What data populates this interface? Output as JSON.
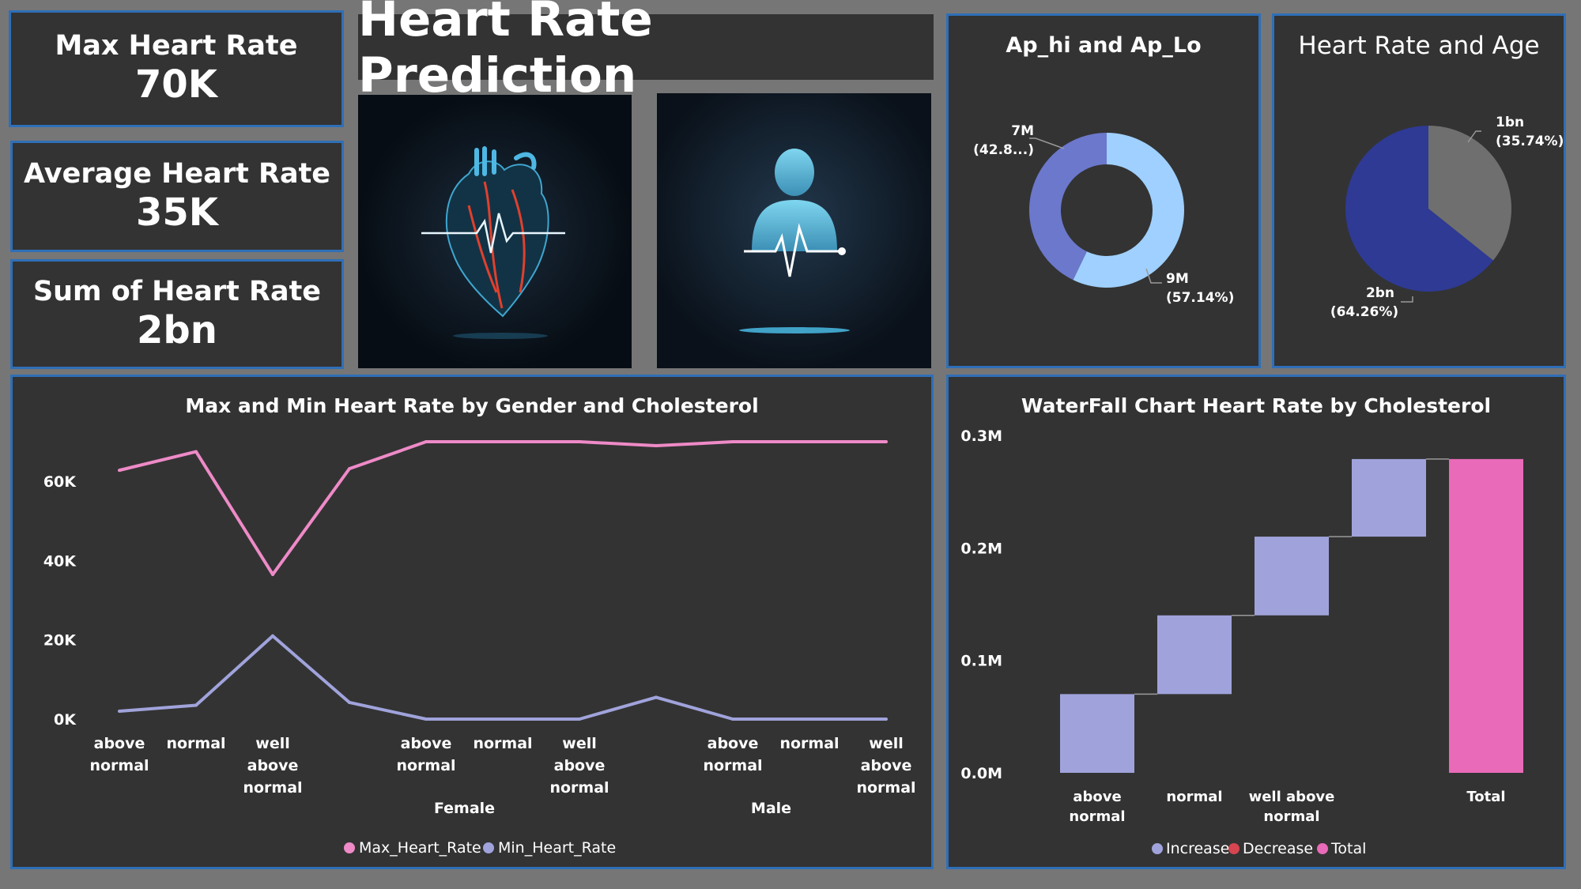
{
  "kpis": [
    {
      "label": "Max Heart Rate",
      "value": "70K"
    },
    {
      "label": "Average Heart Rate",
      "value": "35K"
    },
    {
      "label": "Sum of Heart Rate",
      "value": "2bn"
    }
  ],
  "dashboard_title": "Heart Rate Prediction",
  "images": {
    "heart": "heart-illustration-icon",
    "person": "person-pulse-icon"
  },
  "colors": {
    "max": "#ee8ac7",
    "min": "#a0a3db",
    "increase": "#a0a3db",
    "decrease": "#d64550",
    "total": "#e86ab8",
    "donut_light": "#9fd0ff",
    "donut_dark": "#6b78cc",
    "pie_gray": "#6f6f6f",
    "pie_navy": "#2e3a94"
  },
  "chart_data": [
    {
      "type": "donut",
      "title": "Ap_hi and Ap_Lo",
      "slices": [
        {
          "value_label": "9M",
          "pct_label": "(57.14%)",
          "value": 9,
          "pct": 57.14
        },
        {
          "value_label": "7M",
          "pct_label": "(42.8...)",
          "value": 7,
          "pct": 42.86
        }
      ]
    },
    {
      "type": "pie",
      "title": "Heart Rate and Age",
      "slices": [
        {
          "value_label": "1bn",
          "pct_label": "(35.74%)",
          "value": 1,
          "pct": 35.74
        },
        {
          "value_label": "2bn",
          "pct_label": "(64.26%)",
          "value": 2,
          "pct": 64.26
        }
      ]
    },
    {
      "type": "line",
      "title": "Max and Min Heart Rate by Gender and Cholesterol",
      "categories": [
        [
          "above",
          "normal"
        ],
        [
          "normal"
        ],
        [
          "well",
          "above",
          "normal"
        ],
        [],
        [
          "above",
          "normal"
        ],
        [
          "normal"
        ],
        [
          "well",
          "above",
          "normal"
        ],
        [],
        [
          "above",
          "normal"
        ],
        [
          "normal"
        ],
        [
          "well",
          "above",
          "normal"
        ]
      ],
      "groups": [
        {
          "label": "Female",
          "index": 4.5
        },
        {
          "label": "Male",
          "index": 8.5
        }
      ],
      "yticks": [
        {
          "label": "0K",
          "v": 0
        },
        {
          "label": "20K",
          "v": 20000
        },
        {
          "label": "40K",
          "v": 40000
        },
        {
          "label": "60K",
          "v": 60000
        }
      ],
      "ylim": [
        0,
        72000
      ],
      "series": [
        {
          "name": "Max_Heart_Rate",
          "values": [
            62800,
            67500,
            36500,
            63200,
            70000,
            70000,
            70000,
            69000,
            70000,
            70000,
            70000
          ]
        },
        {
          "name": "Min_Heart_Rate",
          "values": [
            2000,
            3500,
            21000,
            4200,
            0,
            0,
            0,
            5500,
            0,
            0,
            0
          ]
        }
      ],
      "legend": [
        "Max_Heart_Rate",
        "Min_Heart_Rate"
      ]
    },
    {
      "type": "bar",
      "subtype": "waterfall",
      "title": "WaterFall Chart Heart Rate by Cholesterol",
      "categories": [
        [
          "above",
          "normal"
        ],
        [
          "normal"
        ],
        [
          "well above",
          "normal"
        ],
        [],
        [
          "Total"
        ]
      ],
      "yticks": [
        {
          "label": "0.0M",
          "v": 0
        },
        {
          "label": "0.1M",
          "v": 0.1
        },
        {
          "label": "0.2M",
          "v": 0.2
        },
        {
          "label": "0.3M",
          "v": 0.3
        }
      ],
      "ylim": [
        0,
        0.3
      ],
      "steps": [
        {
          "kind": "increase",
          "start": 0,
          "end": 0.07
        },
        {
          "kind": "increase",
          "start": 0.07,
          "end": 0.14
        },
        {
          "kind": "increase",
          "start": 0.14,
          "end": 0.21
        },
        {
          "kind": "increase",
          "start": 0.21,
          "end": 0.279
        },
        {
          "kind": "total",
          "start": 0,
          "end": 0.279
        }
      ],
      "legend": [
        "Increase",
        "Decrease",
        "Total"
      ]
    }
  ]
}
